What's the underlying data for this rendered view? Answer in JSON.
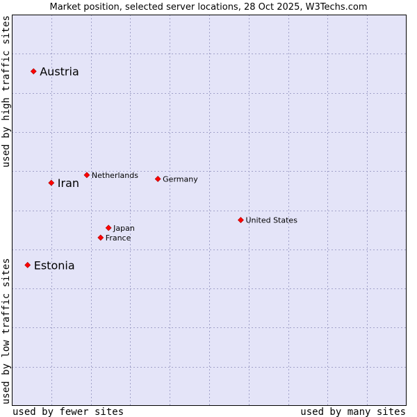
{
  "chart_data": {
    "type": "scatter",
    "title": "Market position, selected server locations, 28 Oct 2025, W3Techs.com",
    "xlabel_left": "used by fewer sites",
    "xlabel_right": "used by many sites",
    "ylabel_top": "used by high traffic sites",
    "ylabel_bottom": "used by low traffic sites",
    "xlim": [
      0,
      100
    ],
    "ylim": [
      0,
      100
    ],
    "grid": true,
    "colors": {
      "plot_bg": "#e4e4f8",
      "grid": "#a0a0c8",
      "point": "#ff0000",
      "frame": "#000000"
    },
    "points": [
      {
        "label": "Austria",
        "x": 5.5,
        "y": 85.5,
        "emphasis": true
      },
      {
        "label": "Iran",
        "x": 10,
        "y": 57,
        "emphasis": true
      },
      {
        "label": "Estonia",
        "x": 4,
        "y": 36,
        "emphasis": true
      },
      {
        "label": "Netherlands",
        "x": 19,
        "y": 59,
        "emphasis": false
      },
      {
        "label": "Germany",
        "x": 37,
        "y": 58,
        "emphasis": false
      },
      {
        "label": "United States",
        "x": 58,
        "y": 47.5,
        "emphasis": false
      },
      {
        "label": "Japan",
        "x": 24.5,
        "y": 45.5,
        "emphasis": false
      },
      {
        "label": "France",
        "x": 22.5,
        "y": 43,
        "emphasis": false
      }
    ]
  }
}
